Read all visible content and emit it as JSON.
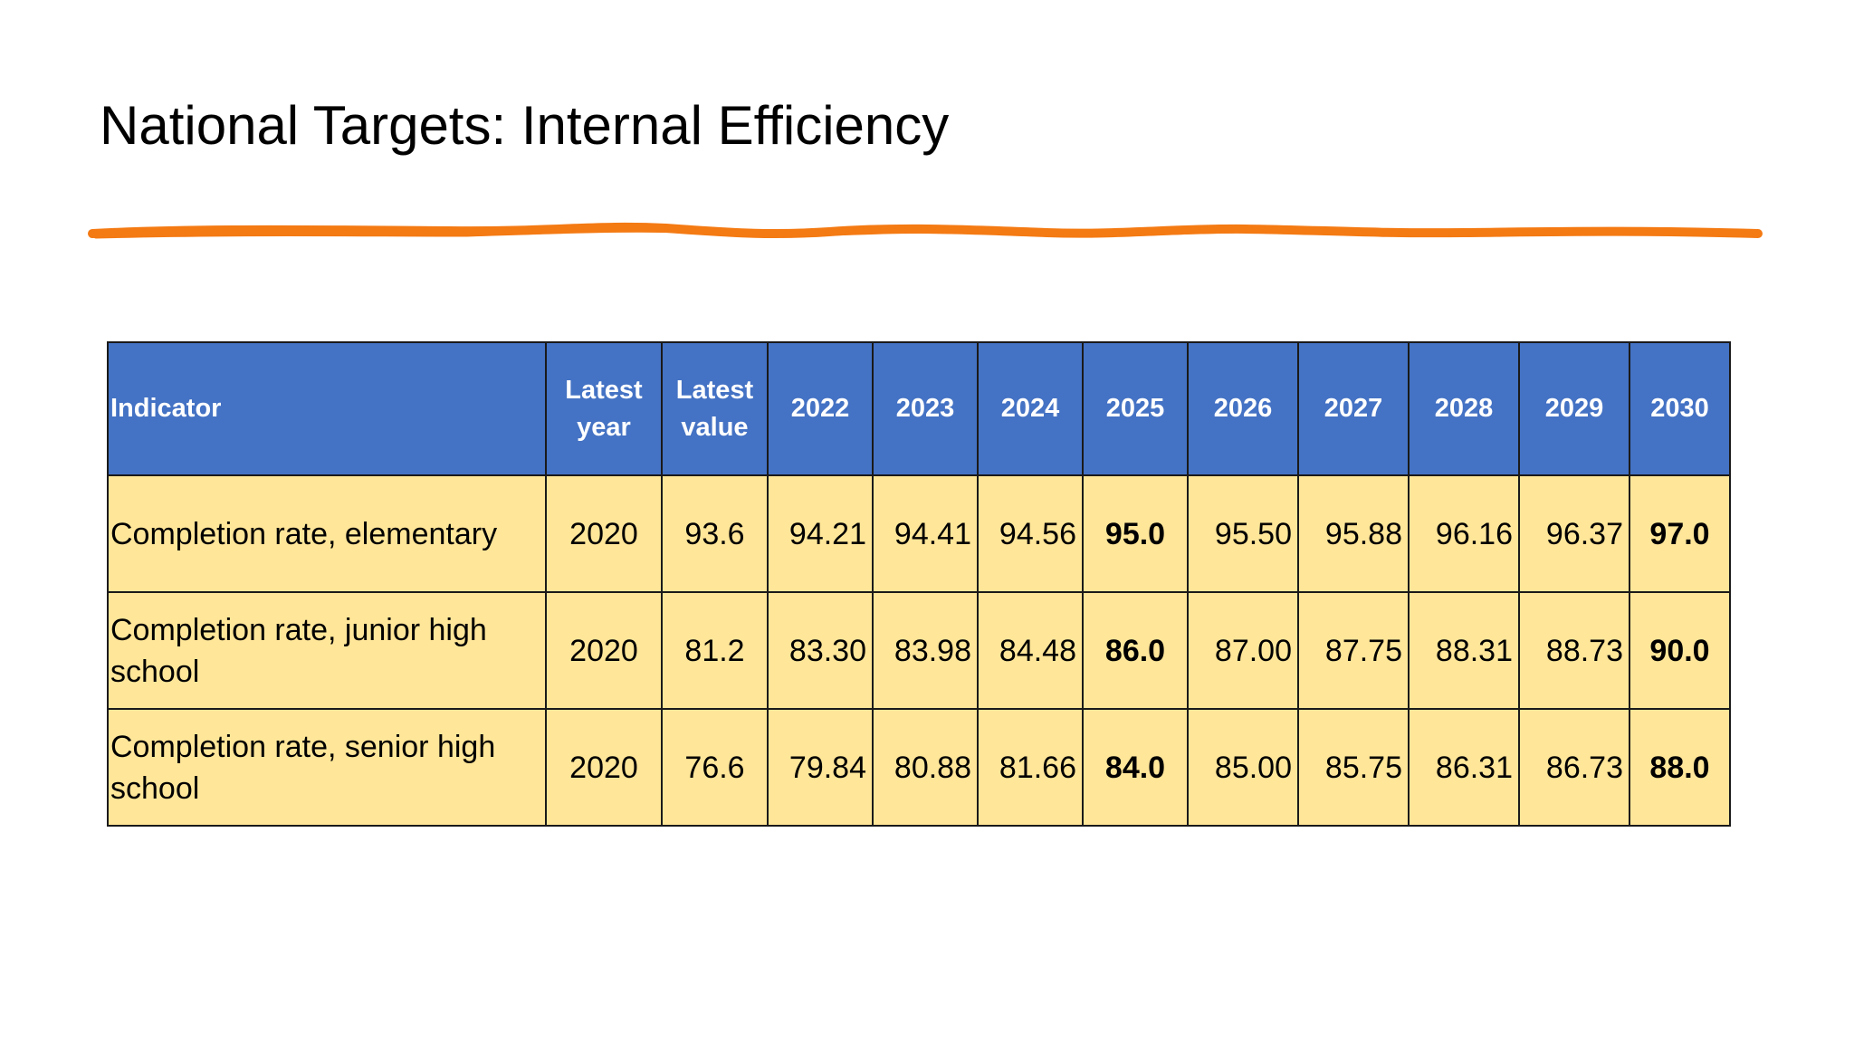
{
  "slide": {
    "title": "National Targets: Internal Efficiency",
    "accent_color": "#f47a13"
  },
  "table": {
    "header_bg": "#4472c4",
    "row_bg": "#ffe699",
    "headers": {
      "indicator": "Indicator",
      "latest_year": "Latest year",
      "latest_value": "Latest value",
      "years": [
        "2022",
        "2023",
        "2024",
        "2025",
        "2026",
        "2027",
        "2028",
        "2029",
        "2030"
      ]
    },
    "rows": [
      {
        "indicator": "Completion rate, elementary",
        "latest_year": "2020",
        "latest_value": "93.6",
        "values": [
          "94.21",
          "94.41",
          "94.56",
          "95.0",
          "95.50",
          "95.88",
          "96.16",
          "96.37",
          "97.0"
        ]
      },
      {
        "indicator": "Completion rate, junior high school",
        "latest_year": "2020",
        "latest_value": "81.2",
        "values": [
          "83.30",
          "83.98",
          "84.48",
          "86.0",
          "87.00",
          "87.75",
          "88.31",
          "88.73",
          "90.0"
        ]
      },
      {
        "indicator": "Completion rate, senior high school",
        "latest_year": "2020",
        "latest_value": "76.6",
        "values": [
          "79.84",
          "80.88",
          "81.66",
          "84.0",
          "85.00",
          "85.75",
          "86.31",
          "86.73",
          "88.0"
        ]
      }
    ]
  }
}
